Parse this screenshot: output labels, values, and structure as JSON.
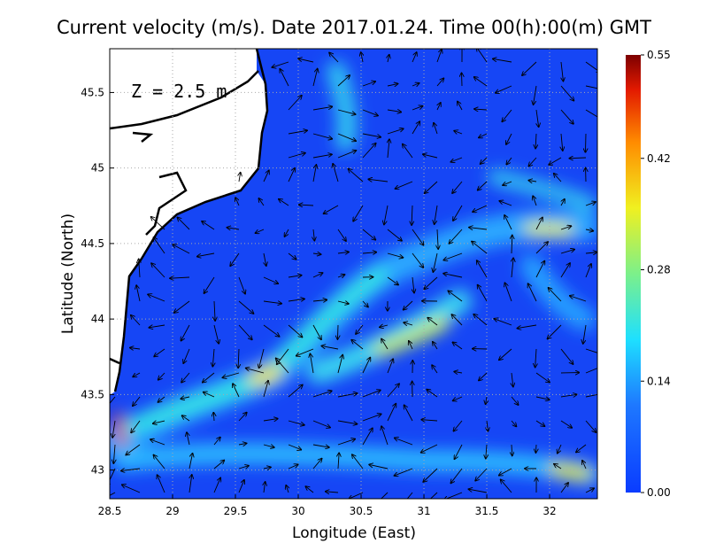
{
  "chart_data": {
    "type": "quiver-map",
    "title": "Current velocity (m/s). Date 2017.01.24. Time 00(h):00(m) GMT",
    "annotation": "Z = 2.5 m",
    "x_label": "Longitude (East)",
    "y_label": "Latitude (North)",
    "xlim": [
      28.5,
      32.38
    ],
    "ylim": [
      42.81,
      45.79
    ],
    "xticks": [
      28.5,
      29,
      29.5,
      30,
      30.5,
      31,
      31.5,
      32
    ],
    "yticks": [
      43,
      43.5,
      44,
      44.5,
      45,
      45.5
    ],
    "grid": true,
    "colorbar_lim": [
      0,
      0.55
    ],
    "colorbar_ticks": [
      {
        "value": 0,
        "label": "0.00"
      },
      0.14,
      0.28,
      0.42,
      0.55
    ]
  }
}
